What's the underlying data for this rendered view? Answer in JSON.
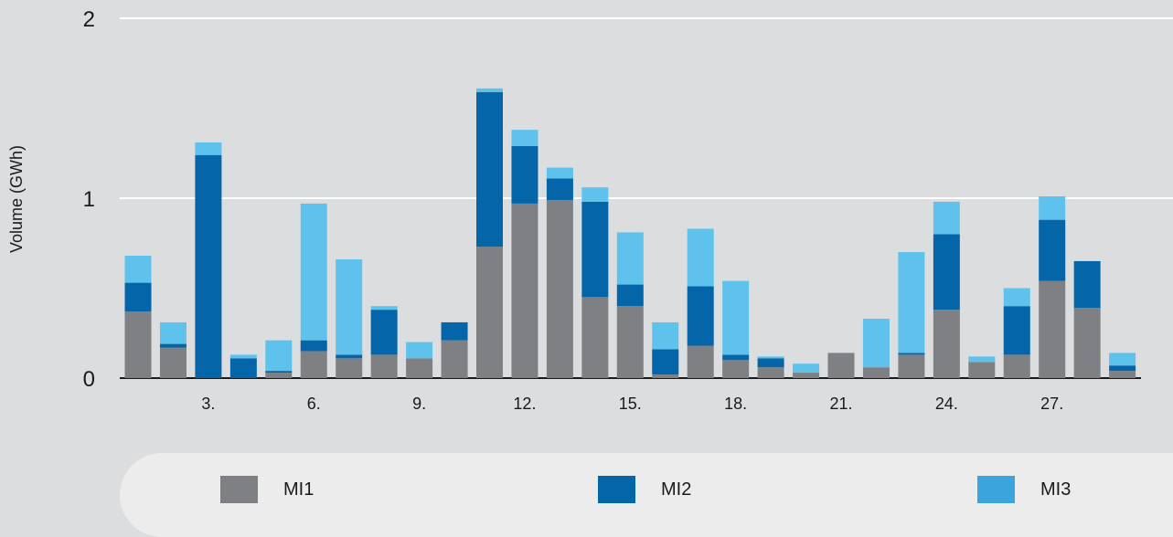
{
  "chart_data": {
    "type": "bar",
    "stacked": true,
    "ylabel": "Volume (GWh)",
    "ylim": [
      0,
      2
    ],
    "yticks": [
      "0",
      "1",
      "2"
    ],
    "x": [
      1,
      2,
      3,
      4,
      5,
      6,
      7,
      8,
      9,
      10,
      11,
      12,
      13,
      14,
      15,
      16,
      17,
      18,
      19,
      20,
      21,
      22,
      23,
      24,
      25,
      26,
      27,
      28,
      29
    ],
    "xtick_labels": [
      {
        "x": 3,
        "label": "3."
      },
      {
        "x": 6,
        "label": "6."
      },
      {
        "x": 9,
        "label": "9."
      },
      {
        "x": 12,
        "label": "12."
      },
      {
        "x": 15,
        "label": "15."
      },
      {
        "x": 18,
        "label": "18."
      },
      {
        "x": 21,
        "label": "21."
      },
      {
        "x": 24,
        "label": "24."
      },
      {
        "x": 27,
        "label": "27."
      }
    ],
    "grid": true,
    "legend_position": "bottom",
    "series": [
      {
        "name": "MI1",
        "color": "#7e8083",
        "values": [
          0.37,
          0.17,
          0,
          0,
          0.03,
          0.15,
          0.11,
          0.13,
          0.11,
          0.21,
          0.73,
          0.97,
          0.99,
          0.45,
          0.4,
          0.02,
          0.18,
          0.1,
          0.06,
          0.03,
          0.14,
          0.06,
          0.13,
          0.38,
          0.09,
          0.13,
          0.54,
          0.39,
          0.04
        ]
      },
      {
        "name": "MI2",
        "color": "#0565a9",
        "values": [
          0.16,
          0.02,
          1.24,
          0.11,
          0.01,
          0.06,
          0.02,
          0.25,
          0,
          0.1,
          0.86,
          0.32,
          0.12,
          0.53,
          0.12,
          0.14,
          0.33,
          0.03,
          0.05,
          0,
          0,
          0,
          0.01,
          0.42,
          0,
          0.27,
          0.34,
          0.26,
          0.03
        ]
      },
      {
        "name": "MI3",
        "color": "#5ec2ec",
        "values": [
          0.15,
          0.12,
          0.07,
          0.02,
          0.17,
          0.76,
          0.53,
          0.02,
          0.09,
          0,
          0.02,
          0.09,
          0.06,
          0.08,
          0.29,
          0.15,
          0.32,
          0.41,
          0.01,
          0.05,
          0,
          0.27,
          0.56,
          0.18,
          0.03,
          0.1,
          0.13,
          0,
          0.07
        ]
      }
    ]
  },
  "legend": {
    "items": [
      {
        "label": "MI1",
        "color": "#7e8083"
      },
      {
        "label": "MI2",
        "color": "#0565a9"
      },
      {
        "label": "MI3",
        "color": "#3aa4dc"
      }
    ]
  }
}
